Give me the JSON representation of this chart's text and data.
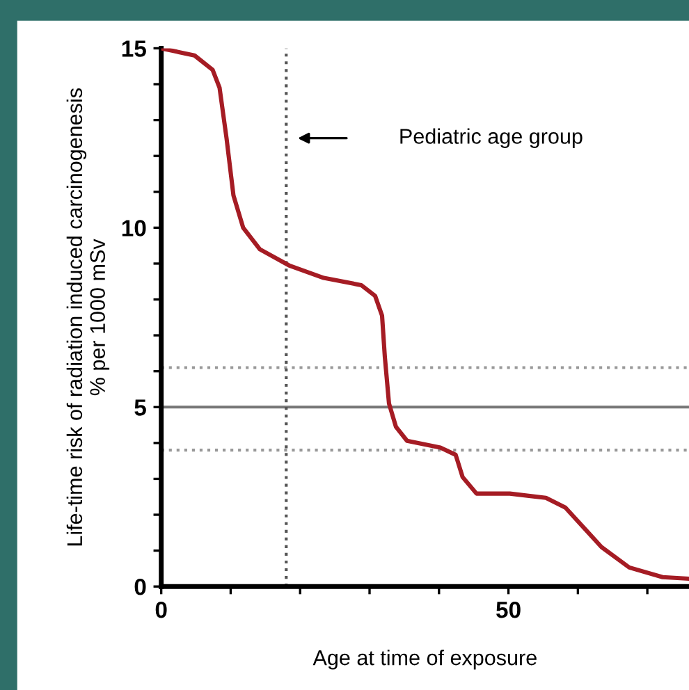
{
  "chart_data": {
    "type": "line",
    "xlabel": "Age at time of exposure",
    "ylabel": "Life-time risk of radiation induced carcinogenesis\n% per 1000 mSv",
    "x": [
      0,
      4.8,
      7.4,
      8.4,
      9.4,
      10.4,
      11.8,
      14.2,
      18.4,
      23.4,
      28.8,
      30.8,
      31.8,
      32.2,
      32.8,
      33.8,
      35.4,
      40.2,
      42.4,
      43.4,
      45.4,
      50.2,
      55.4,
      58.2,
      63.4,
      67.4,
      72.2,
      75.8
    ],
    "series": [
      {
        "color": "#a51c24",
        "values": [
          15,
          14.8,
          14.4,
          13.9,
          12.5,
          10.9,
          10.0,
          9.4,
          8.95,
          8.6,
          8.4,
          8.1,
          7.55,
          6.4,
          5.1,
          4.45,
          4.06,
          3.87,
          3.67,
          3.05,
          2.59,
          2.59,
          2.47,
          2.2,
          1.1,
          0.53,
          0.26,
          0.22
        ]
      }
    ],
    "xlim": [
      0,
      76
    ],
    "ylim": [
      0,
      15
    ],
    "xticks": [
      0,
      {
        "value": 10,
        "label": null
      },
      {
        "value": 20,
        "label": null
      },
      {
        "value": 30,
        "label": null
      },
      {
        "value": 40,
        "label": null
      },
      50,
      {
        "value": 60,
        "label": null
      },
      {
        "value": 70,
        "label": null
      }
    ],
    "yticks": [
      0,
      {
        "value": 1,
        "label": null
      },
      {
        "value": 2,
        "label": null
      },
      {
        "value": 3,
        "label": null
      },
      {
        "value": 4,
        "label": null
      },
      5,
      {
        "value": 6,
        "label": null
      },
      {
        "value": 7,
        "label": null
      },
      {
        "value": 8,
        "label": null
      },
      {
        "value": 9,
        "label": null
      },
      10,
      {
        "value": 11,
        "label": null
      },
      {
        "value": 12,
        "label": null
      },
      {
        "value": 13,
        "label": null
      },
      {
        "value": 14,
        "label": null
      },
      15
    ],
    "ref_lines": [
      {
        "axis": "y",
        "value": 6.1,
        "color": "#999999",
        "line_style": "dotted"
      },
      {
        "axis": "y",
        "value": 5,
        "color": "#777777",
        "line_style": "solid"
      },
      {
        "axis": "y",
        "value": 3.8,
        "color": "#999999",
        "line_style": "dotted"
      },
      {
        "axis": "x",
        "value": 18,
        "color": "#555555",
        "line_style": "dotted"
      }
    ],
    "annotations": [
      "Pediatric age group"
    ],
    "grid": false,
    "legend": false,
    "marker": "none",
    "line_style": "solid"
  }
}
